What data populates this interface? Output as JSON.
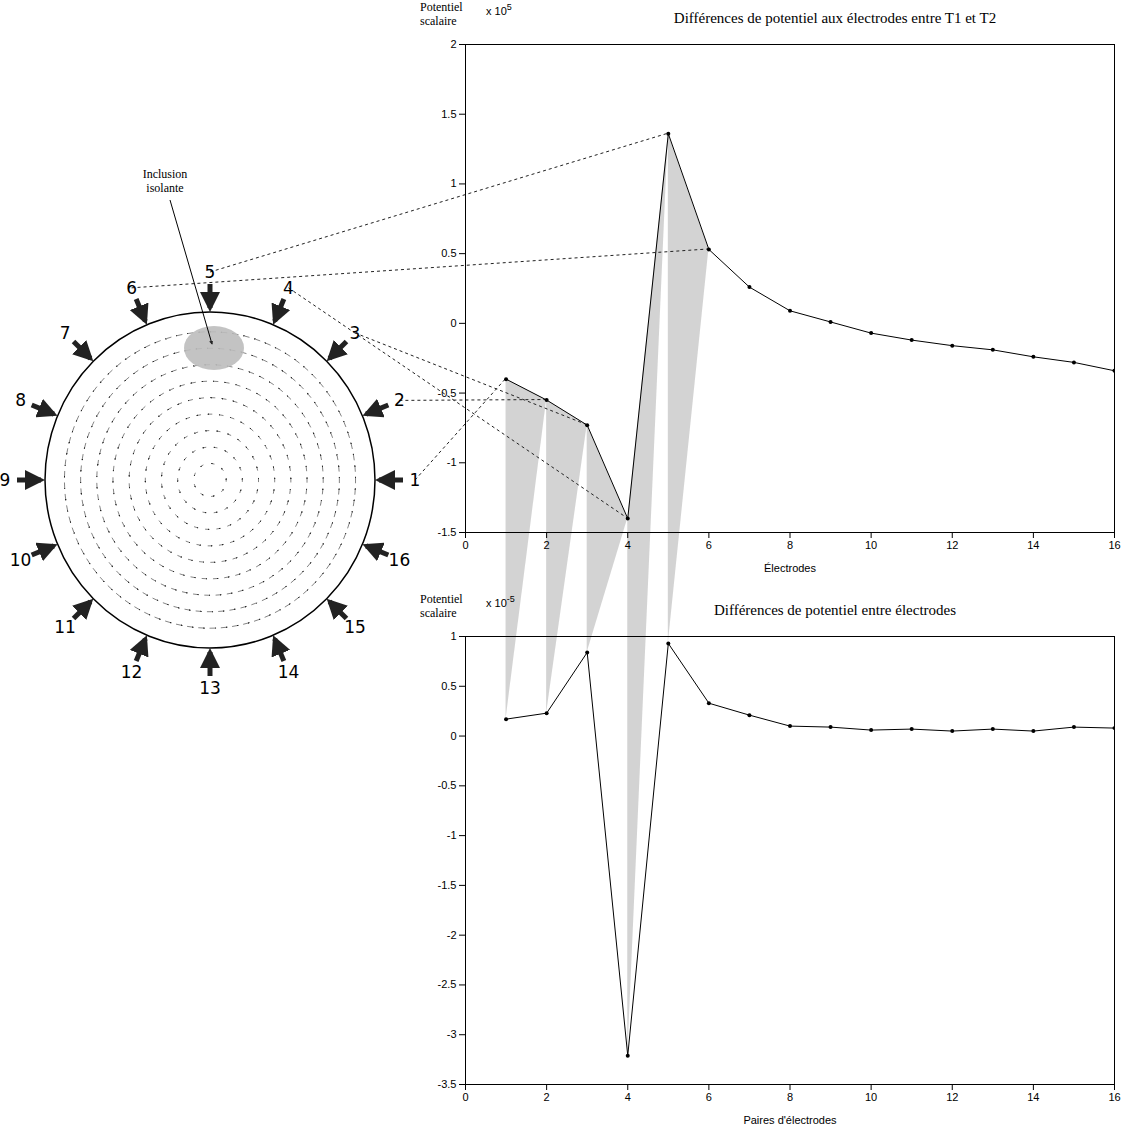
{
  "diagram": {
    "annotation": "Inclusion isolante",
    "electrodes": [
      1,
      2,
      3,
      4,
      5,
      6,
      7,
      8,
      9,
      10,
      11,
      12,
      13,
      14,
      15,
      16
    ]
  },
  "chart_data": [
    {
      "type": "line",
      "title": "Différences de potentiel aux électrodes entre T1 et T2",
      "xlabel": "Électrodes",
      "ylabel": "Potentiel scalaire",
      "annotations": [
        {
          "text": "x 10",
          "superscript": "5"
        }
      ],
      "x": [
        1,
        2,
        3,
        4,
        5,
        6,
        7,
        8,
        9,
        10,
        11,
        12,
        13,
        14,
        15,
        16
      ],
      "values": [
        -0.4,
        -0.55,
        -0.73,
        -1.4,
        1.36,
        0.53,
        0.26,
        0.09,
        0.01,
        -0.07,
        -0.12,
        -0.16,
        -0.19,
        -0.24,
        -0.28,
        -0.34
      ],
      "color": "#000000",
      "marker": "dot",
      "xlim": [
        0,
        16
      ],
      "xticks": [
        0,
        2,
        4,
        6,
        8,
        10,
        12,
        14,
        16
      ],
      "ylim": [
        -1.5,
        2
      ],
      "yticks": [
        -1.5,
        -1,
        -0.5,
        0,
        0.5,
        1,
        1.5,
        2
      ]
    },
    {
      "type": "line",
      "title": "Différences de potentiel entre électrodes",
      "xlabel": "Paires d'électrodes",
      "ylabel": "Potentiel scalaire",
      "annotations": [
        {
          "text": "x 10",
          "superscript": "-5"
        }
      ],
      "x": [
        1,
        2,
        3,
        4,
        5,
        6,
        7,
        8,
        9,
        10,
        11,
        12,
        13,
        14,
        15,
        16
      ],
      "values": [
        0.17,
        0.23,
        0.84,
        -3.21,
        0.93,
        0.33,
        0.21,
        0.1,
        0.09,
        0.06,
        0.07,
        0.05,
        0.07,
        0.05,
        0.09,
        0.08
      ],
      "color": "#000000",
      "marker": "dot",
      "xlim": [
        0,
        16
      ],
      "xticks": [
        0,
        2,
        4,
        6,
        8,
        10,
        12,
        14,
        16
      ],
      "ylim": [
        -3.5,
        1
      ],
      "yticks": [
        -3.5,
        -3,
        -2.5,
        -2,
        -1.5,
        -1,
        -0.5,
        0,
        0.5,
        1
      ]
    }
  ]
}
